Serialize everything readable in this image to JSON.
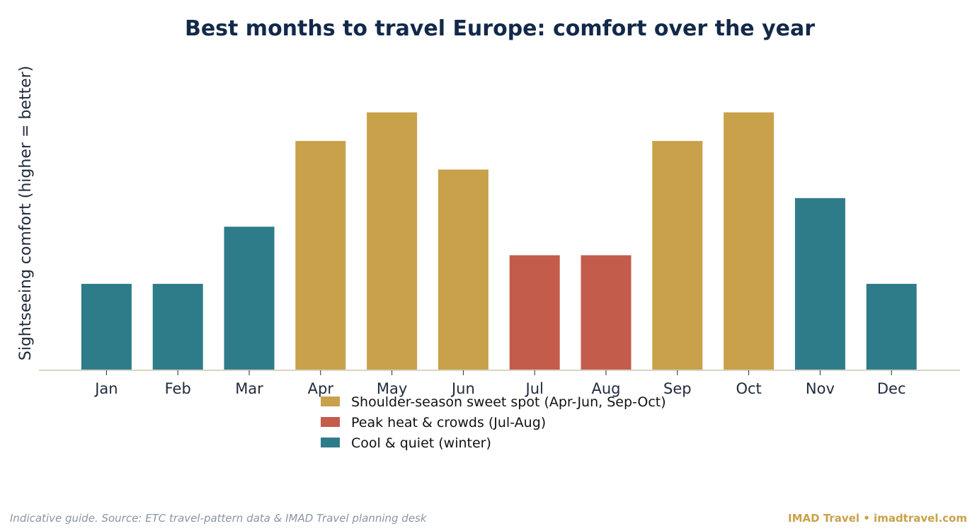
{
  "chart_data": {
    "type": "bar",
    "title": "Best months to travel Europe: comfort over the year",
    "ylabel": "Sightseeing comfort  (higher = better)",
    "xlabel": "",
    "categories": [
      "Jan",
      "Feb",
      "Mar",
      "Apr",
      "May",
      "Jun",
      "Jul",
      "Aug",
      "Sep",
      "Oct",
      "Nov",
      "Dec"
    ],
    "values": [
      3,
      3,
      5,
      8,
      9,
      7,
      4,
      4,
      8,
      9,
      6,
      3
    ],
    "groups": [
      "winter",
      "winter",
      "winter",
      "shoulder",
      "shoulder",
      "shoulder",
      "peak",
      "peak",
      "shoulder",
      "shoulder",
      "winter",
      "winter"
    ],
    "ylim": [
      0,
      11
    ],
    "y_ticks_shown": false,
    "grid": false,
    "legend": {
      "placement": "bottom-center",
      "entries": [
        {
          "key": "shoulder",
          "label": "Shoulder-season sweet spot (Apr-Jun, Sep-Oct)",
          "color": "#c9a14a"
        },
        {
          "key": "peak",
          "label": "Peak heat & crowds (Jul-Aug)",
          "color": "#c45c4b"
        },
        {
          "key": "winter",
          "label": "Cool & quiet (winter)",
          "color": "#2e7c89"
        }
      ]
    }
  },
  "footer": {
    "source_note": "Indicative guide. Source: ETC travel-pattern data & IMAD Travel planning desk",
    "brand": "IMAD Travel  •  imadtravel.com"
  },
  "colors": {
    "title": "#12294a",
    "axis_line": "#d8d4c4",
    "text": "#1f2a3a"
  }
}
